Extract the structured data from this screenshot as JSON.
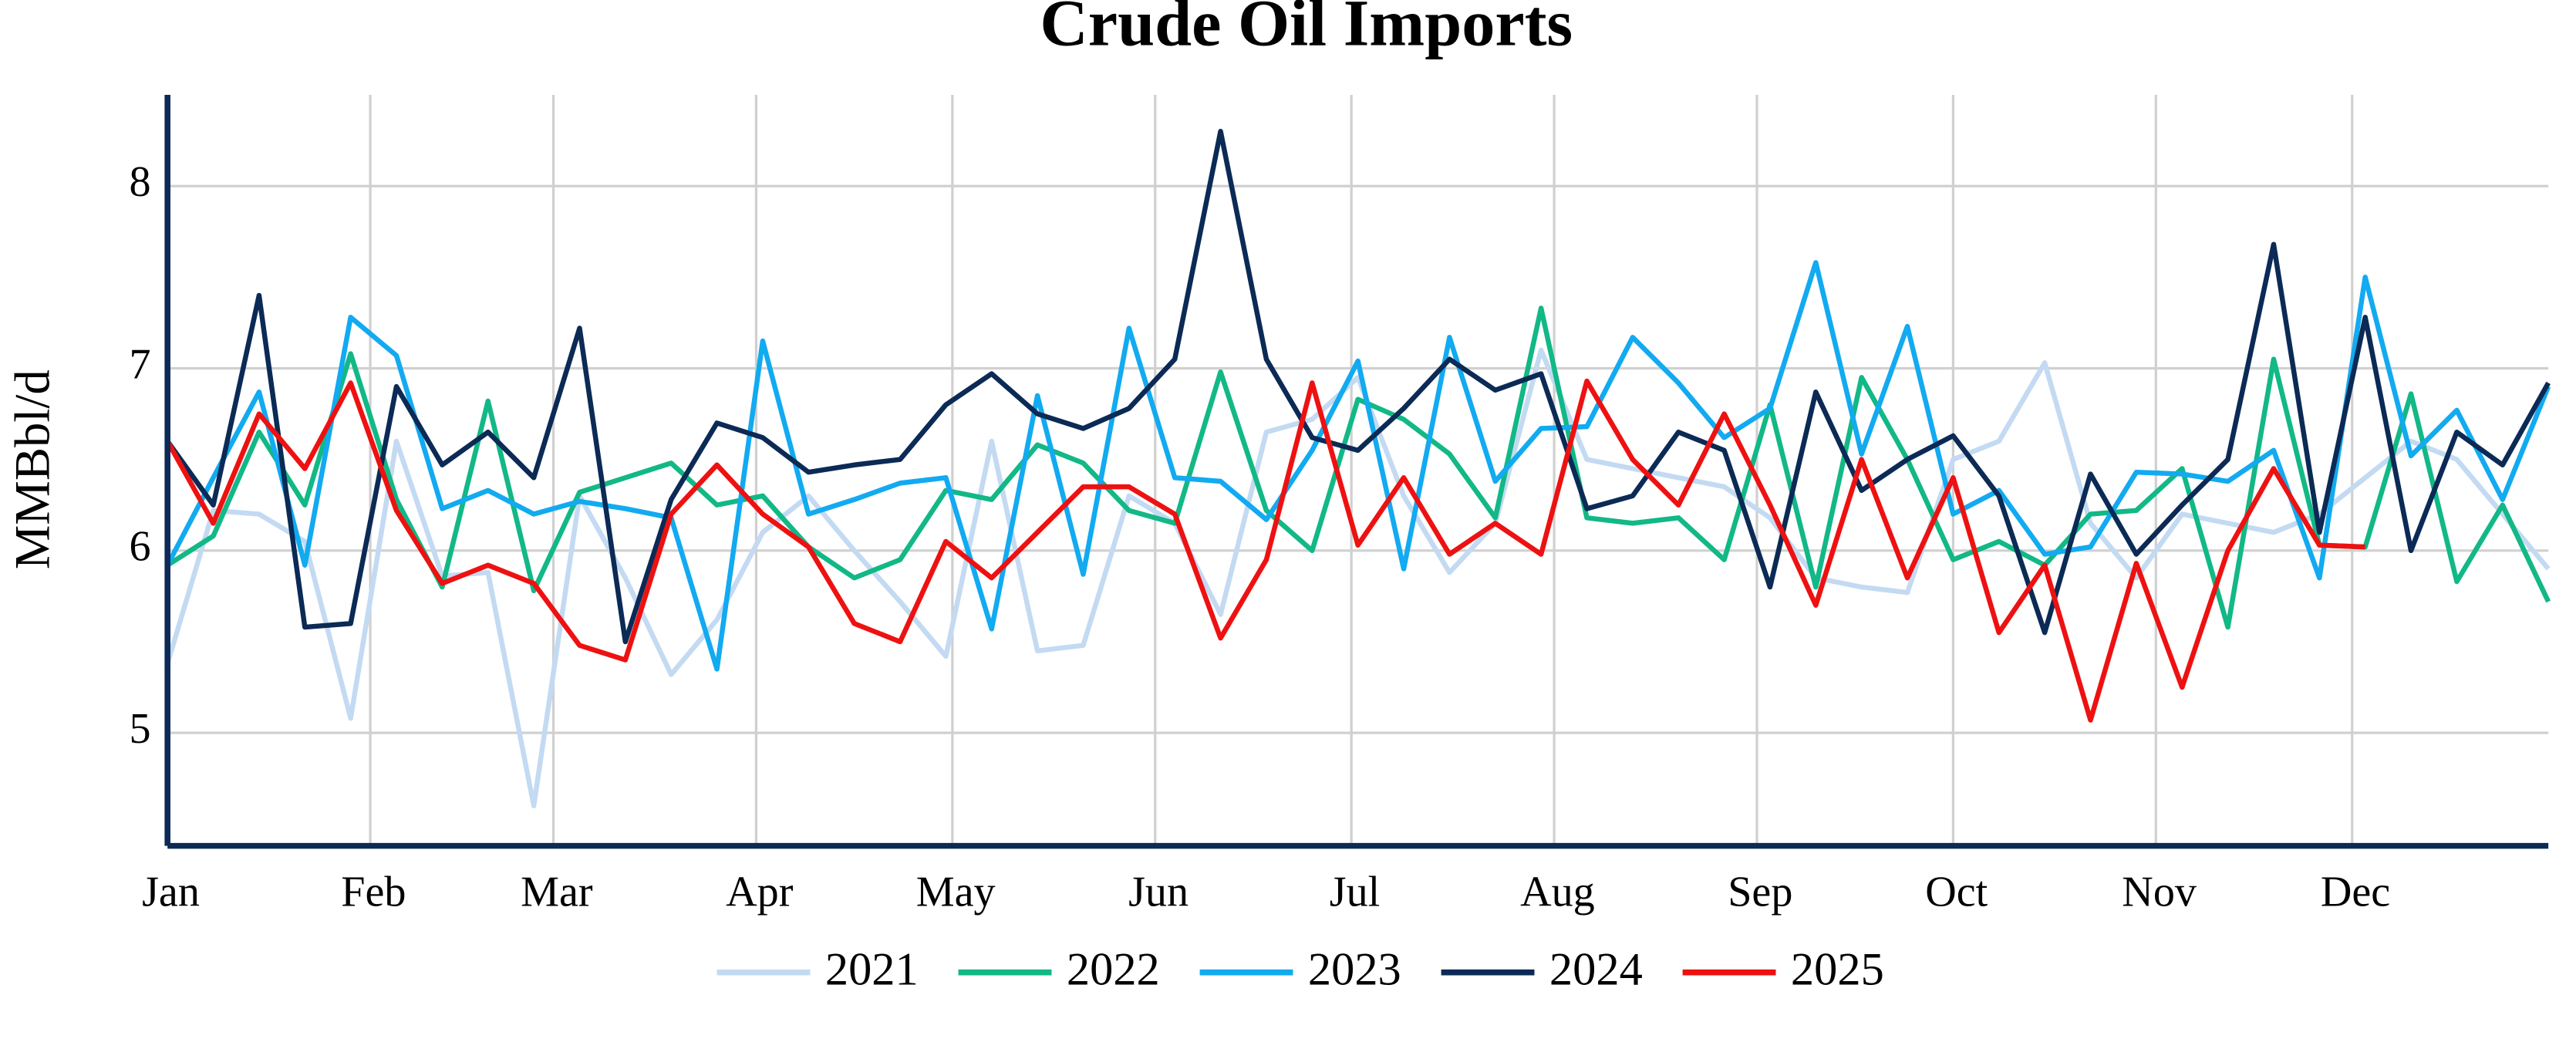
{
  "chart_data": {
    "type": "line",
    "title": "Crude Oil Imports",
    "y_label": "MMBbl/d",
    "x": [
      1,
      8,
      15,
      22,
      29,
      36,
      43,
      50,
      57,
      64,
      71,
      78,
      85,
      92,
      99,
      106,
      113,
      120,
      127,
      134,
      141,
      148,
      155,
      162,
      169,
      176,
      183,
      190,
      197,
      204,
      211,
      218,
      225,
      232,
      239,
      246,
      253,
      260,
      267,
      274,
      281,
      288,
      295,
      302,
      309,
      316,
      323,
      330,
      337,
      344,
      351,
      358,
      365
    ],
    "xlim": [
      1,
      365
    ],
    "xticks": [
      {
        "value": 1,
        "label": "Jan"
      },
      {
        "value": 32,
        "label": "Feb"
      },
      {
        "value": 60,
        "label": "Mar"
      },
      {
        "value": 91,
        "label": "Apr"
      },
      {
        "value": 121,
        "label": "May"
      },
      {
        "value": 152,
        "label": "Jun"
      },
      {
        "value": 182,
        "label": "Jul"
      },
      {
        "value": 213,
        "label": "Aug"
      },
      {
        "value": 244,
        "label": "Sep"
      },
      {
        "value": 274,
        "label": "Oct"
      },
      {
        "value": 305,
        "label": "Nov"
      },
      {
        "value": 335,
        "label": "Dec"
      }
    ],
    "ylim": [
      4.38,
      8.5
    ],
    "yticks": [
      5,
      6,
      7,
      8
    ],
    "grid": true,
    "legend": "bottom",
    "series": [
      {
        "name": "2021",
        "color": "#c3daf2",
        "values": [
          5.38,
          6.22,
          6.2,
          6.05,
          5.08,
          6.6,
          5.86,
          5.88,
          4.6,
          6.3,
          5.85,
          5.32,
          5.62,
          6.1,
          6.3,
          6.0,
          5.72,
          5.42,
          6.6,
          5.45,
          5.48,
          6.3,
          6.15,
          5.65,
          6.65,
          6.72,
          6.95,
          6.3,
          5.88,
          6.15,
          7.1,
          6.5,
          6.45,
          6.4,
          6.35,
          6.18,
          5.85,
          5.8,
          5.77,
          6.5,
          6.6,
          7.03,
          6.15,
          5.85,
          6.2,
          6.15,
          6.1,
          6.2,
          6.4,
          6.6,
          6.5,
          6.2,
          5.9
        ]
      },
      {
        "name": "2022",
        "color": "#12b886",
        "values": [
          5.92,
          6.08,
          6.65,
          6.25,
          7.08,
          6.28,
          5.8,
          6.82,
          5.78,
          6.32,
          6.4,
          6.48,
          6.25,
          6.3,
          6.02,
          5.85,
          5.95,
          6.33,
          6.28,
          6.58,
          6.48,
          6.22,
          6.15,
          6.98,
          6.22,
          6.0,
          6.83,
          6.72,
          6.53,
          6.18,
          7.33,
          6.18,
          6.15,
          6.18,
          5.95,
          6.8,
          5.8,
          6.95,
          6.5,
          5.95,
          6.05,
          5.92,
          6.2,
          6.22,
          6.45,
          5.58,
          7.05,
          6.03,
          6.02,
          6.86,
          5.83,
          6.25,
          5.72
        ]
      },
      {
        "name": "2023",
        "color": "#12aaf0",
        "values": [
          5.92,
          6.4,
          6.87,
          5.92,
          7.28,
          7.07,
          6.23,
          6.33,
          6.2,
          6.27,
          6.23,
          6.18,
          5.35,
          7.15,
          6.2,
          6.28,
          6.37,
          6.4,
          5.57,
          6.85,
          5.87,
          7.22,
          6.4,
          6.38,
          6.17,
          6.55,
          7.04,
          5.9,
          7.17,
          6.38,
          6.67,
          6.68,
          7.17,
          6.92,
          6.62,
          6.78,
          7.58,
          6.53,
          7.23,
          6.2,
          6.33,
          5.98,
          6.02,
          6.43,
          6.42,
          6.38,
          6.55,
          5.85,
          7.5,
          6.52,
          6.77,
          6.28,
          6.9
        ]
      },
      {
        "name": "2024",
        "color": "#0b2a55",
        "values": [
          6.6,
          6.25,
          7.4,
          5.58,
          5.6,
          6.9,
          6.47,
          6.65,
          6.4,
          7.22,
          5.5,
          6.28,
          6.7,
          6.62,
          6.43,
          6.47,
          6.5,
          6.8,
          6.97,
          6.75,
          6.67,
          6.78,
          7.05,
          8.3,
          7.05,
          6.62,
          6.55,
          6.78,
          7.05,
          6.88,
          6.97,
          6.23,
          6.3,
          6.65,
          6.55,
          5.8,
          6.87,
          6.33,
          6.5,
          6.63,
          6.3,
          5.55,
          6.42,
          5.98,
          6.25,
          6.5,
          7.68,
          6.1,
          7.28,
          6.0,
          6.65,
          6.47,
          6.92
        ]
      },
      {
        "name": "2025",
        "color": "#ee1111",
        "values": [
          6.6,
          6.15,
          6.75,
          6.45,
          6.92,
          6.22,
          5.82,
          5.92,
          5.82,
          5.48,
          5.4,
          6.2,
          6.47,
          6.2,
          6.02,
          5.6,
          5.5,
          6.05,
          5.85,
          6.1,
          6.35,
          6.35,
          6.2,
          5.52,
          5.95,
          6.92,
          6.03,
          6.4,
          5.98,
          6.15,
          5.98,
          6.93,
          6.5,
          6.25,
          6.75,
          6.25,
          5.7,
          6.5,
          5.85,
          6.4,
          5.55,
          5.92,
          5.07,
          5.93,
          5.25,
          6.0,
          6.45,
          6.03,
          6.02,
          null,
          null,
          null,
          null
        ]
      }
    ]
  }
}
